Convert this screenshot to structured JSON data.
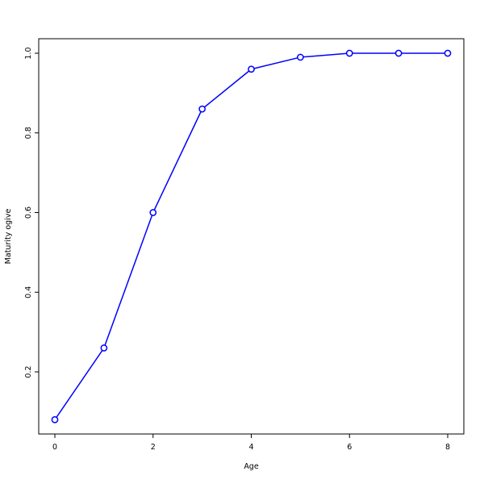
{
  "chart_data": {
    "type": "line",
    "title": "",
    "xlabel": "Age",
    "ylabel": "Maturity ogive",
    "x": [
      0,
      1,
      2,
      3,
      4,
      5,
      6,
      7,
      8
    ],
    "y": [
      0.08,
      0.26,
      0.6,
      0.86,
      0.96,
      0.99,
      1.0,
      1.0,
      1.0
    ],
    "x_tick_labels": [
      "0",
      "2",
      "4",
      "6",
      "8"
    ],
    "x_tick_values": [
      0,
      2,
      4,
      6,
      8
    ],
    "y_tick_labels": [
      "0.2",
      "0.4",
      "0.6",
      "0.8",
      "1.0"
    ],
    "y_tick_values": [
      0.2,
      0.4,
      0.6,
      0.8,
      1.0
    ],
    "xlim": [
      -0.33,
      8.33
    ],
    "ylim": [
      0.043,
      1.037
    ],
    "line_color": "#0000ff",
    "marker": "open-circle",
    "marker_fill": "#ffffff",
    "axis_color": "#000000",
    "grid": false,
    "legend": "none"
  }
}
